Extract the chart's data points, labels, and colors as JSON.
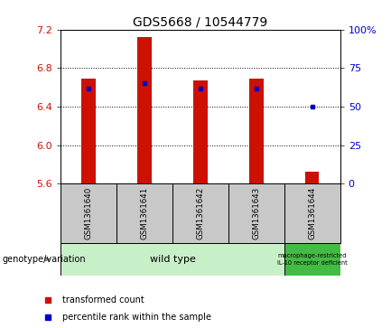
{
  "title": "GDS5668 / 10544779",
  "samples": [
    "GSM1361640",
    "GSM1361641",
    "GSM1361642",
    "GSM1361643",
    "GSM1361644"
  ],
  "bar_bottom": 5.6,
  "bar_tops": [
    6.69,
    7.12,
    6.67,
    6.69,
    5.72
  ],
  "percentile_values": [
    62,
    65,
    62,
    62,
    50
  ],
  "left_ylim": [
    5.6,
    7.2
  ],
  "right_ylim": [
    0,
    100
  ],
  "left_yticks": [
    5.6,
    6.0,
    6.4,
    6.8,
    7.2
  ],
  "right_yticks": [
    0,
    25,
    50,
    75,
    100
  ],
  "right_yticklabels": [
    "0",
    "25",
    "50",
    "75",
    "100%"
  ],
  "bar_color": "#cc1100",
  "dot_color": "#0000cc",
  "label_bg": "#c8c8c8",
  "wt_color": "#c8f0c8",
  "mr_color": "#44bb44",
  "legend_items": [
    {
      "label": "transformed count",
      "color": "#cc1100"
    },
    {
      "label": "percentile rank within the sample",
      "color": "#0000cc"
    }
  ],
  "genotype_label": "genotype/variation",
  "title_fontsize": 10,
  "tick_fontsize": 8,
  "bar_width": 0.25
}
